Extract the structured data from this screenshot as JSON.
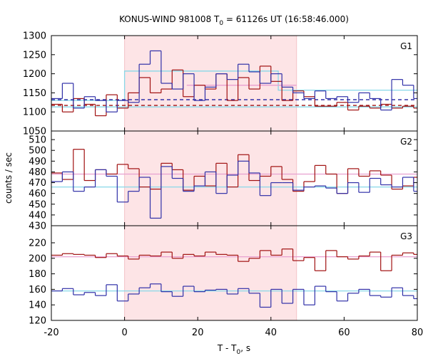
{
  "chart_data": {
    "type": "line",
    "title": "KONUS-WIND 981008 T",
    "title_subscript": "0",
    "title_suffix": " = 61126s UT (16:58:46.000)",
    "xlabel": "T - T",
    "xlabel_subscript": "0",
    "xlabel_suffix": ", s",
    "ylabel": "counts / sec",
    "xlim": [
      -20,
      80
    ],
    "xticks": [
      -20,
      0,
      20,
      40,
      60,
      80
    ],
    "highlight_interval": [
      0,
      47
    ],
    "colors": {
      "dark_red": "#a01010",
      "dark_blue": "#3030a8",
      "light_blue": "#88d8e8",
      "pink": "#e8a0d0",
      "shade": "#fde4e6"
    },
    "bin_width": 3,
    "bin_start": -20,
    "panels": [
      {
        "label": "G1",
        "ylim": [
          1050,
          1300
        ],
        "yticks": [
          1050,
          1100,
          1150,
          1200,
          1250,
          1300
        ],
        "series": [
          {
            "color": "dark_red",
            "values": [
              1120,
              1100,
              1135,
              1120,
              1090,
              1145,
              1110,
              1150,
              1190,
              1150,
              1160,
              1210,
              1140,
              1170,
              1160,
              1200,
              1130,
              1190,
              1160,
              1220,
              1180,
              1130,
              1155,
              1140,
              1115,
              1115,
              1125,
              1105,
              1115,
              1110,
              1120,
              1110,
              1115,
              1110,
              1105
            ]
          },
          {
            "color": "dark_blue",
            "values": [
              1135,
              1175,
              1110,
              1140,
              1130,
              1100,
              1130,
              1125,
              1225,
              1260,
              1175,
              1160,
              1200,
              1130,
              1165,
              1200,
              1185,
              1225,
              1205,
              1175,
              1200,
              1165,
              1150,
              1135,
              1155,
              1135,
              1140,
              1125,
              1150,
              1135,
              1105,
              1185,
              1170,
              1135,
              1140
            ]
          }
        ],
        "constant_lines": [
          {
            "color": "light_blue",
            "style": "step",
            "points": [
              [
                -20,
                1130
              ],
              [
                0,
                1130
              ],
              [
                0,
                1207
              ],
              [
                42,
                1207
              ],
              [
                42,
                1157
              ],
              [
                80,
                1157
              ]
            ]
          },
          {
            "color": "light_blue",
            "style": "solid",
            "points": [
              [
                -20,
                1113
              ],
              [
                80,
                1113
              ]
            ]
          },
          {
            "color": "pink",
            "style": "solid",
            "points": [
              [
                17,
                1170
              ],
              [
                47,
                1170
              ]
            ]
          },
          {
            "color": "dark_blue",
            "style": "dashed",
            "points": [
              [
                -20,
                1132
              ],
              [
                80,
                1132
              ]
            ]
          },
          {
            "color": "dark_red",
            "style": "dashed",
            "points": [
              [
                -20,
                1117
              ],
              [
                80,
                1117
              ]
            ]
          }
        ]
      },
      {
        "label": "G2",
        "ylim": [
          430,
          518
        ],
        "yticks": [
          430,
          440,
          450,
          460,
          470,
          480,
          490,
          500,
          510
        ],
        "series": [
          {
            "color": "dark_red",
            "values": [
              479,
              473,
              501,
              472,
              482,
              478,
              487,
              483,
              466,
              464,
              488,
              482,
              463,
              476,
              467,
              488,
              466,
              496,
              472,
              476,
              485,
              473,
              462,
              471,
              486,
              478,
              460,
              483,
              476,
              481,
              477,
              464,
              467,
              475,
              478
            ]
          },
          {
            "color": "dark_blue",
            "values": [
              471,
              480,
              462,
              466,
              482,
              476,
              452,
              462,
              475,
              437,
              485,
              474,
              462,
              467,
              480,
              460,
              477,
              490,
              479,
              458,
              470,
              470,
              463,
              466,
              467,
              465,
              460,
              470,
              461,
              474,
              468,
              466,
              475,
              462,
              469
            ]
          }
        ],
        "constant_lines": [
          {
            "color": "light_blue",
            "style": "solid",
            "points": [
              [
                -20,
                466
              ],
              [
                80,
                466
              ]
            ]
          },
          {
            "color": "pink",
            "style": "solid",
            "points": [
              [
                -20,
                478
              ],
              [
                80,
                478
              ]
            ]
          }
        ]
      },
      {
        "label": "G3",
        "ylim": [
          120,
          242
        ],
        "yticks": [
          120,
          140,
          160,
          180,
          200,
          220
        ],
        "series": [
          {
            "color": "dark_red",
            "values": [
              204,
              206,
              205,
              204,
              201,
              206,
              203,
              199,
              204,
              203,
              208,
              200,
              205,
              203,
              208,
              205,
              204,
              196,
              200,
              210,
              204,
              212,
              197,
              201,
              184,
              210,
              202,
              199,
              203,
              208,
              184,
              204,
              207,
              205,
              196
            ]
          },
          {
            "color": "dark_blue",
            "values": [
              158,
              161,
              153,
              156,
              152,
              166,
              145,
              154,
              162,
              167,
              157,
              151,
              164,
              157,
              159,
              160,
              154,
              161,
              155,
              137,
              160,
              142,
              160,
              140,
              164,
              157,
              145,
              155,
              160,
              152,
              150,
              162,
              152,
              148,
              146
            ]
          }
        ],
        "constant_lines": [
          {
            "color": "light_blue",
            "style": "solid",
            "points": [
              [
                -20,
                158
              ],
              [
                80,
                158
              ]
            ]
          },
          {
            "color": "pink",
            "style": "solid",
            "points": [
              [
                -20,
                202
              ],
              [
                80,
                202
              ]
            ]
          }
        ]
      }
    ]
  }
}
